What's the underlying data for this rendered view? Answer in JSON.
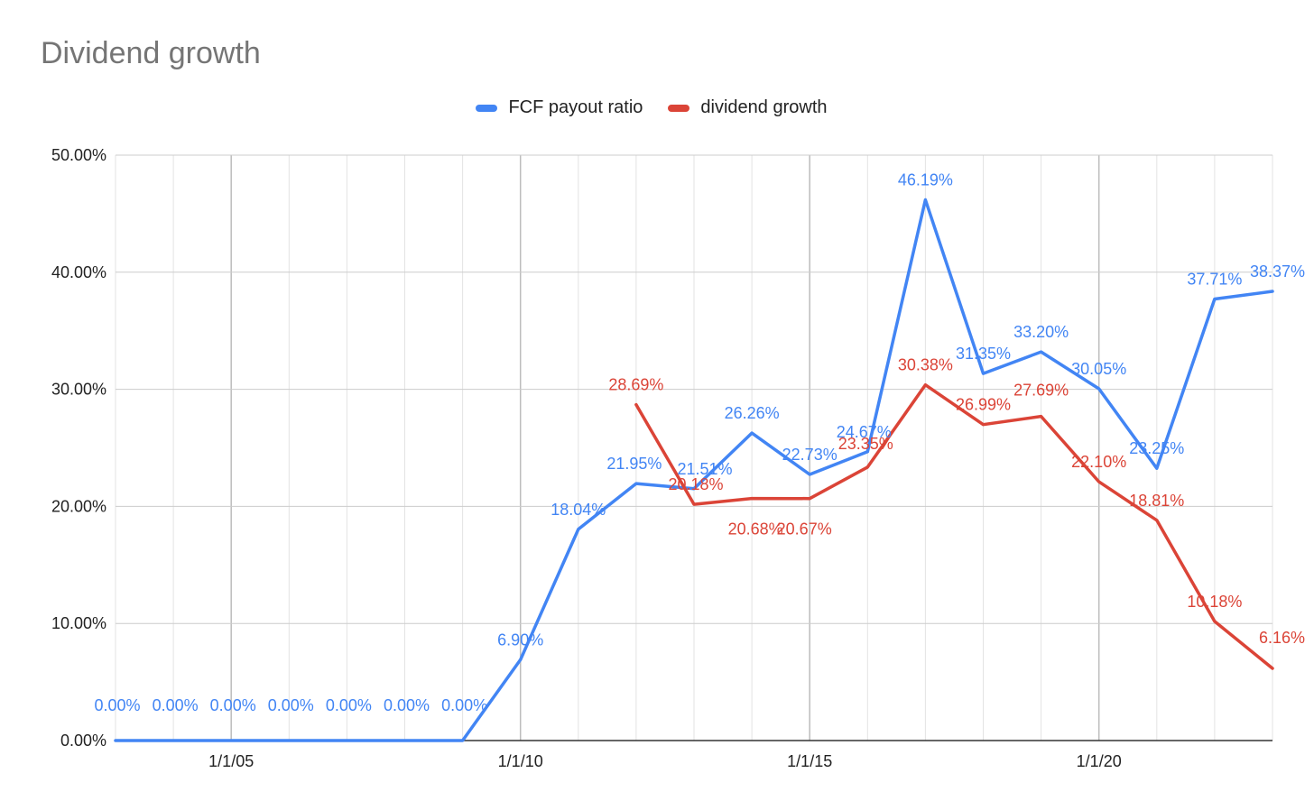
{
  "chart_data": {
    "type": "line",
    "title": "Dividend growth",
    "xlabel": "",
    "ylabel": "",
    "x": [
      "1/1/03",
      "1/1/04",
      "1/1/05",
      "1/1/06",
      "1/1/07",
      "1/1/08",
      "1/1/09",
      "1/1/10",
      "1/1/11",
      "1/1/12",
      "1/1/13",
      "1/1/14",
      "1/1/15",
      "1/1/16",
      "1/1/17",
      "1/1/18",
      "1/1/19",
      "1/1/20",
      "1/1/21",
      "1/1/22",
      "1/1/23"
    ],
    "x_tick_labels": [
      "1/1/05",
      "1/1/10",
      "1/1/15",
      "1/1/20"
    ],
    "y_tick_labels": [
      "0.00%",
      "10.00%",
      "20.00%",
      "30.00%",
      "40.00%",
      "50.00%"
    ],
    "ylim": [
      0,
      50
    ],
    "grid": true,
    "legend_position": "top",
    "series": [
      {
        "name": "FCF payout ratio",
        "color": "#4285f4",
        "values": [
          0,
          0,
          0,
          0,
          0,
          0,
          0,
          6.9,
          18.04,
          21.95,
          21.51,
          26.26,
          22.73,
          24.67,
          46.19,
          31.35,
          33.2,
          30.05,
          23.25,
          37.71,
          38.37
        ],
        "labels": [
          "0.00%",
          "0.00%",
          "0.00%",
          "0.00%",
          "0.00%",
          "0.00%",
          "0.00%",
          "6.90%",
          "18.04%",
          "21.95%",
          "21.51%",
          "26.26%",
          "22.73%",
          "24.67%",
          "46.19%",
          "31.35%",
          "33.20%",
          "30.05%",
          "23.25%",
          "37.71%",
          "38.37%"
        ]
      },
      {
        "name": "dividend growth",
        "color": "#db4437",
        "values": [
          null,
          null,
          null,
          null,
          null,
          null,
          null,
          null,
          null,
          28.69,
          20.18,
          20.68,
          20.67,
          23.35,
          30.38,
          26.99,
          27.69,
          22.1,
          18.81,
          10.18,
          6.16
        ],
        "labels": [
          "",
          "",
          "",
          "",
          "",
          "",
          "",
          "",
          "",
          "28.69%",
          "20.18%",
          "20.68%",
          "20.67%",
          "23.35%",
          "30.38%",
          "26.99%",
          "27.69%",
          "22.10%",
          "18.81%",
          "10.18%",
          "6.16%"
        ]
      }
    ]
  }
}
